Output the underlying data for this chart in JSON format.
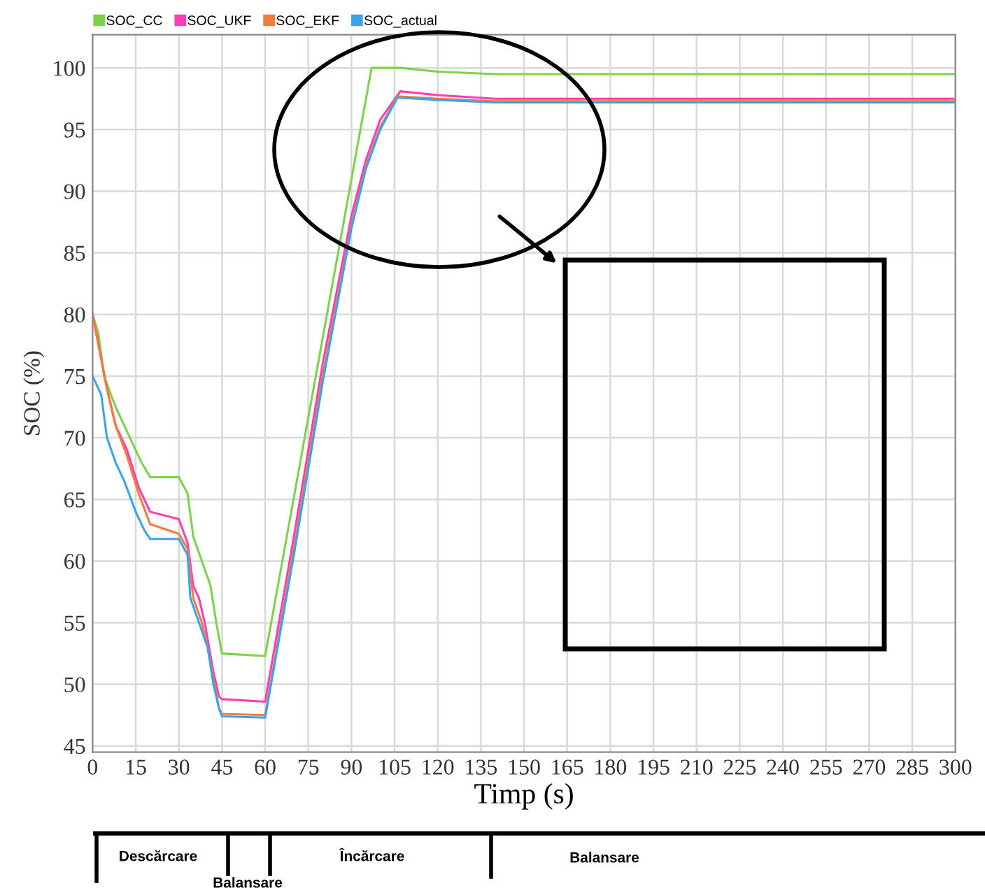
{
  "chart_data": {
    "type": "line",
    "xlabel": "Timp (s)",
    "ylabel": "SOC (%)",
    "xlim": [
      0,
      300
    ],
    "ylim": [
      44.5,
      102.7
    ],
    "xticks": [
      0,
      15,
      30,
      45,
      60,
      75,
      90,
      105,
      120,
      135,
      150,
      165,
      180,
      195,
      210,
      225,
      240,
      255,
      270,
      285,
      300
    ],
    "yticks": [
      45,
      50,
      55,
      60,
      65,
      70,
      75,
      80,
      85,
      90,
      95,
      100
    ],
    "grid": true,
    "legend": "top left",
    "marker": "none",
    "line_style": "solid",
    "series": [
      {
        "name": "SOC_CC",
        "color": "#7ed14a",
        "x": [
          0,
          2,
          4,
          8,
          13,
          17,
          20,
          30,
          33,
          35,
          38,
          41,
          43,
          45,
          60,
          97,
          107,
          120,
          140,
          300
        ],
        "values": [
          80,
          78.5,
          75,
          72.5,
          70,
          68,
          66.8,
          66.8,
          65.5,
          62,
          60,
          58,
          55,
          52.5,
          52.3,
          100,
          100,
          99.7,
          99.5,
          99.5
        ]
      },
      {
        "name": "SOC_UKF",
        "color": "#ff3eb5",
        "x": [
          0,
          5,
          8,
          12,
          16,
          20,
          30,
          33,
          35,
          37,
          39,
          42,
          44,
          45,
          60,
          70,
          80,
          90,
          95,
          100,
          107,
          120,
          140,
          300
        ],
        "values": [
          80,
          74,
          71,
          69,
          66,
          64,
          63.4,
          61.5,
          58,
          57,
          55,
          51,
          49,
          48.8,
          48.6,
          62,
          76,
          88,
          92.5,
          95.8,
          98.1,
          97.8,
          97.5,
          97.5
        ]
      },
      {
        "name": "SOC_EKF",
        "color": "#f47a3c",
        "x": [
          0,
          5,
          8,
          12,
          16,
          20,
          30,
          33,
          35,
          38,
          40,
          42,
          44,
          45,
          60,
          70,
          80,
          90,
          95,
          100,
          106,
          120,
          140,
          300
        ],
        "values": [
          80,
          74,
          71,
          68.5,
          65.5,
          63,
          62.2,
          61,
          57,
          55,
          53,
          50.5,
          48,
          47.6,
          47.5,
          61,
          75,
          87.3,
          92,
          95.2,
          97.7,
          97.5,
          97.3,
          97.3
        ]
      },
      {
        "name": "SOC_actual",
        "color": "#3aa3f0",
        "x": [
          0,
          2,
          3,
          5,
          8,
          11,
          15,
          18,
          20,
          30,
          33,
          34,
          37,
          40,
          42,
          44,
          45,
          60,
          70,
          80,
          90,
          95,
          100,
          106,
          120,
          140,
          300
        ],
        "values": [
          75,
          74,
          73.5,
          70,
          68,
          66.5,
          64,
          62.5,
          61.8,
          61.8,
          60.5,
          57,
          55,
          53,
          50,
          48,
          47.4,
          47.3,
          60.5,
          74.5,
          87,
          91.8,
          95,
          97.6,
          97.4,
          97.2,
          97.2
        ]
      }
    ],
    "annotations": [
      "Descărcare",
      "Balansare",
      "Încărcare",
      "Balansare"
    ]
  }
}
